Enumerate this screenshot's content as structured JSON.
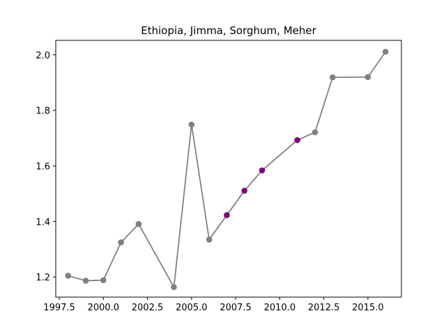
{
  "chart_data": {
    "type": "line",
    "title": "Ethiopia, Jimma, Sorghum, Meher",
    "xlabel": "",
    "ylabel": "",
    "xlim": [
      1997.3,
      2016.9
    ],
    "ylim": [
      1.128,
      2.052
    ],
    "x_ticks": [
      1997.5,
      2000.0,
      2002.5,
      2005.0,
      2007.5,
      2010.0,
      2012.5,
      2015.0
    ],
    "x_tick_labels": [
      "1997.5",
      "2000.0",
      "2002.5",
      "2005.0",
      "2007.5",
      "2010.0",
      "2012.5",
      "2015.0"
    ],
    "y_ticks": [
      1.2,
      1.4,
      1.6,
      1.8,
      2.0
    ],
    "y_tick_labels": [
      "1.2",
      "1.4",
      "1.6",
      "1.8",
      "2.0"
    ],
    "grid": false,
    "series": [
      {
        "line_color": "#808080",
        "points": [
          {
            "x": 1998,
            "y": 1.205,
            "color": "#808080"
          },
          {
            "x": 1999,
            "y": 1.187,
            "color": "#808080"
          },
          {
            "x": 2000,
            "y": 1.189,
            "color": "#808080"
          },
          {
            "x": 2001,
            "y": 1.325,
            "color": "#808080"
          },
          {
            "x": 2002,
            "y": 1.391,
            "color": "#808080"
          },
          {
            "x": 2004,
            "y": 1.164,
            "color": "#808080"
          },
          {
            "x": 2005,
            "y": 1.749,
            "color": "#808080"
          },
          {
            "x": 2006,
            "y": 1.335,
            "color": "#808080"
          },
          {
            "x": 2007,
            "y": 1.423,
            "color": "#800080"
          },
          {
            "x": 2008,
            "y": 1.511,
            "color": "#800080"
          },
          {
            "x": 2009,
            "y": 1.584,
            "color": "#800080"
          },
          {
            "x": 2011,
            "y": 1.693,
            "color": "#800080"
          },
          {
            "x": 2012,
            "y": 1.721,
            "color": "#808080"
          },
          {
            "x": 2013,
            "y": 1.919,
            "color": "#808080"
          },
          {
            "x": 2015,
            "y": 1.92,
            "color": "#808080"
          },
          {
            "x": 2016,
            "y": 2.011,
            "color": "#808080"
          }
        ]
      }
    ]
  }
}
